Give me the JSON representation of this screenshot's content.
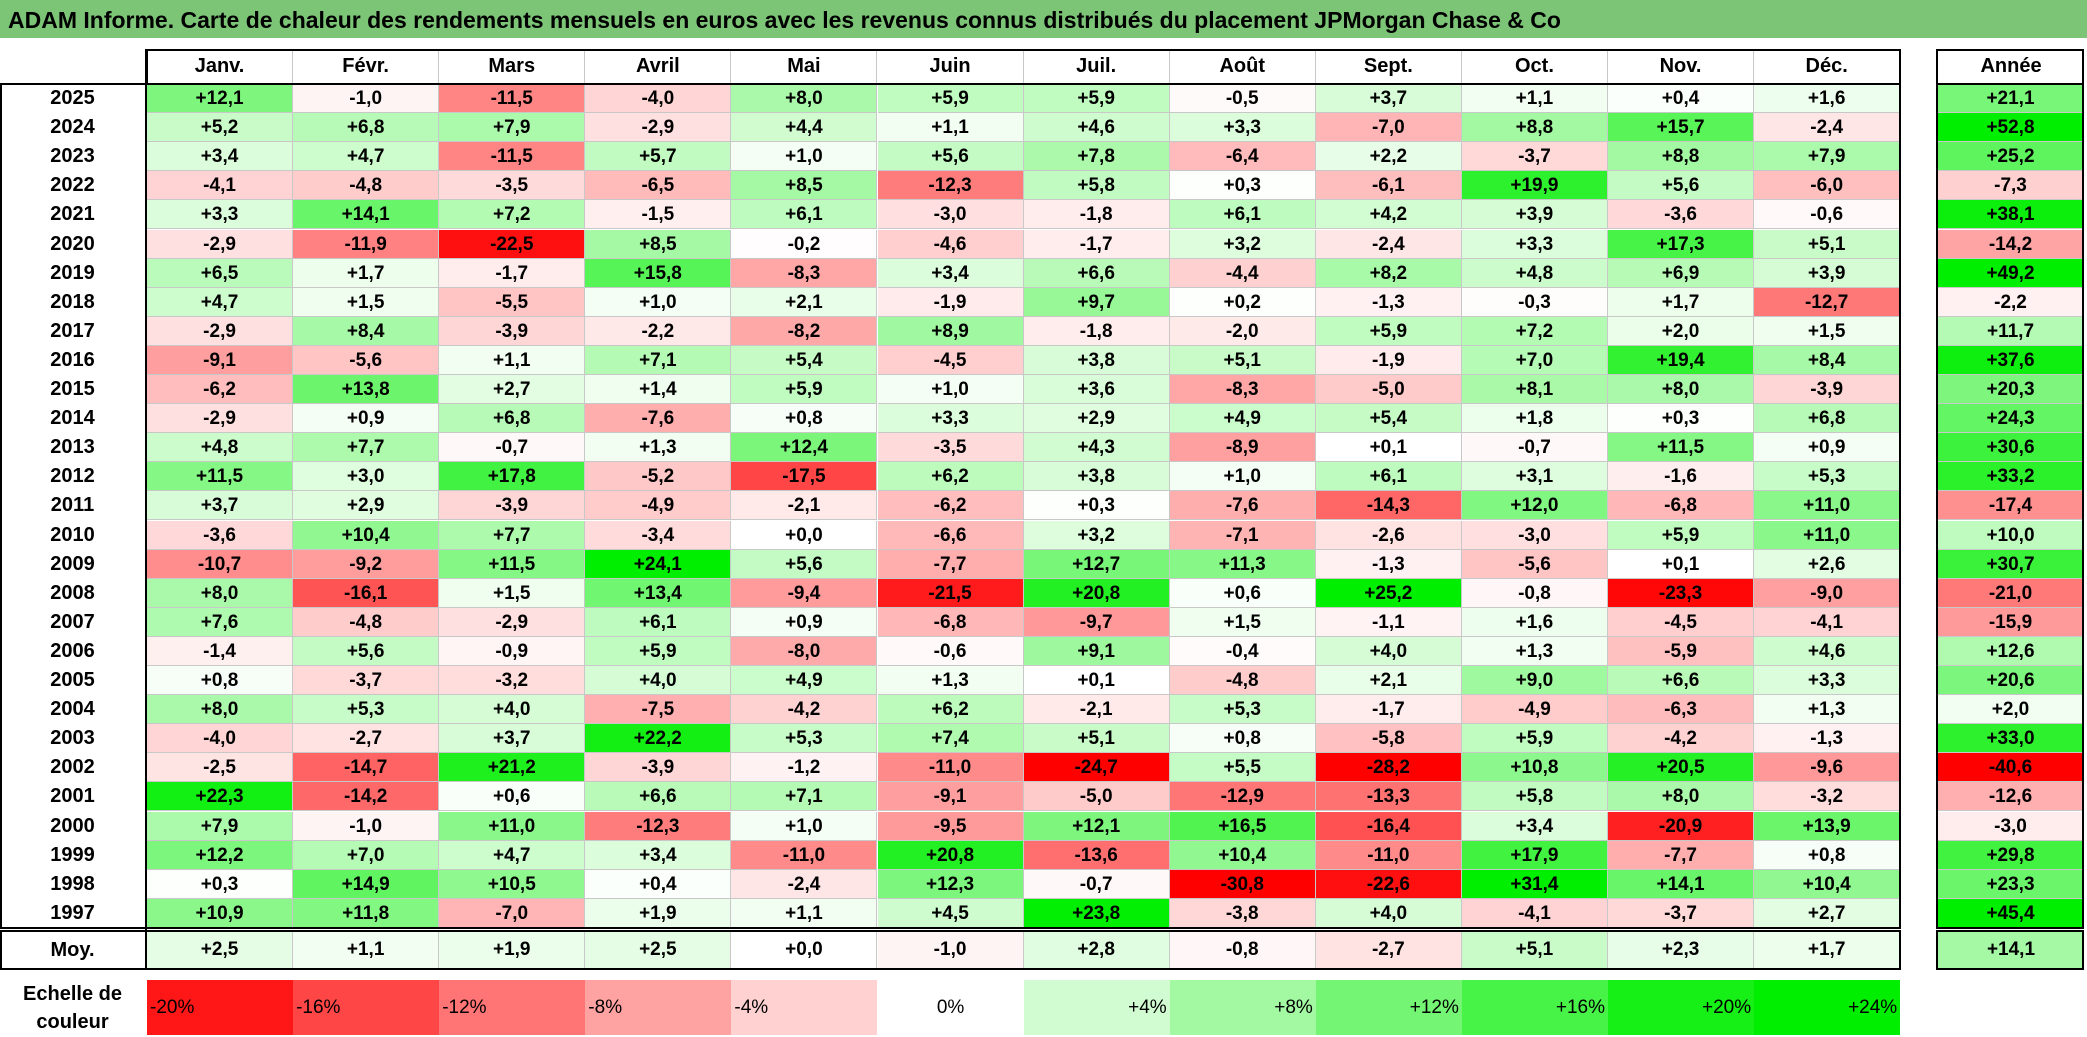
{
  "title": "ADAM Informe. Carte de chaleur des rendements mensuels en euros avec les revenus connus distribués du placement JPMorgan Chase & Co",
  "chart_data": {
    "type": "heatmap",
    "title": "ADAM Informe. Carte de chaleur des rendements mensuels en euros avec les revenus connus distribués du placement JPMorgan Chase & Co",
    "columns": [
      "Janv.",
      "Févr.",
      "Mars",
      "Avril",
      "Mai",
      "Juin",
      "Juil.",
      "Août",
      "Sept.",
      "Oct.",
      "Nov.",
      "Déc."
    ],
    "year_column": "Année",
    "rows": [
      {
        "year": "2025",
        "values": [
          "+12,1",
          "-1,0",
          "-11,5",
          "-4,0",
          "+8,0",
          "+5,9",
          "+5,9",
          "-0,5",
          "+3,7",
          "+1,1",
          "+0,4",
          "+1,6"
        ],
        "annual": "+21,1"
      },
      {
        "year": "2024",
        "values": [
          "+5,2",
          "+6,8",
          "+7,9",
          "-2,9",
          "+4,4",
          "+1,1",
          "+4,6",
          "+3,3",
          "-7,0",
          "+8,8",
          "+15,7",
          "-2,4"
        ],
        "annual": "+52,8"
      },
      {
        "year": "2023",
        "values": [
          "+3,4",
          "+4,7",
          "-11,5",
          "+5,7",
          "+1,0",
          "+5,6",
          "+7,8",
          "-6,4",
          "+2,2",
          "-3,7",
          "+8,8",
          "+7,9"
        ],
        "annual": "+25,2"
      },
      {
        "year": "2022",
        "values": [
          "-4,1",
          "-4,8",
          "-3,5",
          "-6,5",
          "+8,5",
          "-12,3",
          "+5,8",
          "+0,3",
          "-6,1",
          "+19,9",
          "+5,6",
          "-6,0"
        ],
        "annual": "-7,3"
      },
      {
        "year": "2021",
        "values": [
          "+3,3",
          "+14,1",
          "+7,2",
          "-1,5",
          "+6,1",
          "-3,0",
          "-1,8",
          "+6,1",
          "+4,2",
          "+3,9",
          "-3,6",
          "-0,6"
        ],
        "annual": "+38,1"
      },
      {
        "year": "2020",
        "values": [
          "-2,9",
          "-11,9",
          "-22,5",
          "+8,5",
          "-0,2",
          "-4,6",
          "-1,7",
          "+3,2",
          "-2,4",
          "+3,3",
          "+17,3",
          "+5,1"
        ],
        "annual": "-14,2"
      },
      {
        "year": "2019",
        "values": [
          "+6,5",
          "+1,7",
          "-1,7",
          "+15,8",
          "-8,3",
          "+3,4",
          "+6,6",
          "-4,4",
          "+8,2",
          "+4,8",
          "+6,9",
          "+3,9"
        ],
        "annual": "+49,2"
      },
      {
        "year": "2018",
        "values": [
          "+4,7",
          "+1,5",
          "-5,5",
          "+1,0",
          "+2,1",
          "-1,9",
          "+9,7",
          "+0,2",
          "-1,3",
          "-0,3",
          "+1,7",
          "-12,7"
        ],
        "annual": "-2,2"
      },
      {
        "year": "2017",
        "values": [
          "-2,9",
          "+8,4",
          "-3,9",
          "-2,2",
          "-8,2",
          "+8,9",
          "-1,8",
          "-2,0",
          "+5,9",
          "+7,2",
          "+2,0",
          "+1,5"
        ],
        "annual": "+11,7"
      },
      {
        "year": "2016",
        "values": [
          "-9,1",
          "-5,6",
          "+1,1",
          "+7,1",
          "+5,4",
          "-4,5",
          "+3,8",
          "+5,1",
          "-1,9",
          "+7,0",
          "+19,4",
          "+8,4"
        ],
        "annual": "+37,6"
      },
      {
        "year": "2015",
        "values": [
          "-6,2",
          "+13,8",
          "+2,7",
          "+1,4",
          "+5,9",
          "+1,0",
          "+3,6",
          "-8,3",
          "-5,0",
          "+8,1",
          "+8,0",
          "-3,9"
        ],
        "annual": "+20,3"
      },
      {
        "year": "2014",
        "values": [
          "-2,9",
          "+0,9",
          "+6,8",
          "-7,6",
          "+0,8",
          "+3,3",
          "+2,9",
          "+4,9",
          "+5,4",
          "+1,8",
          "+0,3",
          "+6,8"
        ],
        "annual": "+24,3"
      },
      {
        "year": "2013",
        "values": [
          "+4,8",
          "+7,7",
          "-0,7",
          "+1,3",
          "+12,4",
          "-3,5",
          "+4,3",
          "-8,9",
          "+0,1",
          "-0,7",
          "+11,5",
          "+0,9"
        ],
        "annual": "+30,6"
      },
      {
        "year": "2012",
        "values": [
          "+11,5",
          "+3,0",
          "+17,8",
          "-5,2",
          "-17,5",
          "+6,2",
          "+3,8",
          "+1,0",
          "+6,1",
          "+3,1",
          "-1,6",
          "+5,3"
        ],
        "annual": "+33,2"
      },
      {
        "year": "2011",
        "values": [
          "+3,7",
          "+2,9",
          "-3,9",
          "-4,9",
          "-2,1",
          "-6,2",
          "+0,3",
          "-7,6",
          "-14,3",
          "+12,0",
          "-6,8",
          "+11,0"
        ],
        "annual": "-17,4"
      },
      {
        "year": "2010",
        "values": [
          "-3,6",
          "+10,4",
          "+7,7",
          "-3,4",
          "+0,0",
          "-6,6",
          "+3,2",
          "-7,1",
          "-2,6",
          "-3,0",
          "+5,9",
          "+11,0"
        ],
        "annual": "+10,0"
      },
      {
        "year": "2009",
        "values": [
          "-10,7",
          "-9,2",
          "+11,5",
          "+24,1",
          "+5,6",
          "-7,7",
          "+12,7",
          "+11,3",
          "-1,3",
          "-5,6",
          "+0,1",
          "+2,6"
        ],
        "annual": "+30,7"
      },
      {
        "year": "2008",
        "values": [
          "+8,0",
          "-16,1",
          "+1,5",
          "+13,4",
          "-9,4",
          "-21,5",
          "+20,8",
          "+0,6",
          "+25,2",
          "-0,8",
          "-23,3",
          "-9,0"
        ],
        "annual": "-21,0"
      },
      {
        "year": "2007",
        "values": [
          "+7,6",
          "-4,8",
          "-2,9",
          "+6,1",
          "+0,9",
          "-6,8",
          "-9,7",
          "+1,5",
          "-1,1",
          "+1,6",
          "-4,5",
          "-4,1"
        ],
        "annual": "-15,9"
      },
      {
        "year": "2006",
        "values": [
          "-1,4",
          "+5,6",
          "-0,9",
          "+5,9",
          "-8,0",
          "-0,6",
          "+9,1",
          "-0,4",
          "+4,0",
          "+1,3",
          "-5,9",
          "+4,6"
        ],
        "annual": "+12,6"
      },
      {
        "year": "2005",
        "values": [
          "+0,8",
          "-3,7",
          "-3,2",
          "+4,0",
          "+4,9",
          "+1,3",
          "+0,1",
          "-4,8",
          "+2,1",
          "+9,0",
          "+6,6",
          "+3,3"
        ],
        "annual": "+20,6"
      },
      {
        "year": "2004",
        "values": [
          "+8,0",
          "+5,3",
          "+4,0",
          "-7,5",
          "-4,2",
          "+6,2",
          "-2,1",
          "+5,3",
          "-1,7",
          "-4,9",
          "-6,3",
          "+1,3"
        ],
        "annual": "+2,0"
      },
      {
        "year": "2003",
        "values": [
          "-4,0",
          "-2,7",
          "+3,7",
          "+22,2",
          "+5,3",
          "+7,4",
          "+5,1",
          "+0,8",
          "-5,8",
          "+5,9",
          "-4,2",
          "-1,3"
        ],
        "annual": "+33,0"
      },
      {
        "year": "2002",
        "values": [
          "-2,5",
          "-14,7",
          "+21,2",
          "-3,9",
          "-1,2",
          "-11,0",
          "-24,7",
          "+5,5",
          "-28,2",
          "+10,8",
          "+20,5",
          "-9,6"
        ],
        "annual": "-40,6"
      },
      {
        "year": "2001",
        "values": [
          "+22,3",
          "-14,2",
          "+0,6",
          "+6,6",
          "+7,1",
          "-9,1",
          "-5,0",
          "-12,9",
          "-13,3",
          "+5,8",
          "+8,0",
          "-3,2"
        ],
        "annual": "-12,6"
      },
      {
        "year": "2000",
        "values": [
          "+7,9",
          "-1,0",
          "+11,0",
          "-12,3",
          "+1,0",
          "-9,5",
          "+12,1",
          "+16,5",
          "-16,4",
          "+3,4",
          "-20,9",
          "+13,9"
        ],
        "annual": "-3,0"
      },
      {
        "year": "1999",
        "values": [
          "+12,2",
          "+7,0",
          "+4,7",
          "+3,4",
          "-11,0",
          "+20,8",
          "-13,6",
          "+10,4",
          "-11,0",
          "+17,9",
          "-7,7",
          "+0,8"
        ],
        "annual": "+29,8"
      },
      {
        "year": "1998",
        "values": [
          "+0,3",
          "+14,9",
          "+10,5",
          "+0,4",
          "-2,4",
          "+12,3",
          "-0,7",
          "-30,8",
          "-22,6",
          "+31,4",
          "+14,1",
          "+10,4"
        ],
        "annual": "+23,3"
      },
      {
        "year": "1997",
        "values": [
          "+10,9",
          "+11,8",
          "-7,0",
          "+1,9",
          "+1,1",
          "+4,5",
          "+23,8",
          "-3,8",
          "+4,0",
          "-4,1",
          "-3,7",
          "+2,7"
        ],
        "annual": "+45,4"
      }
    ],
    "average": {
      "label": "Moy.",
      "values": [
        "+2,5",
        "+1,1",
        "+1,9",
        "+2,5",
        "+0,0",
        "-1,0",
        "+2,8",
        "-0,8",
        "-2,7",
        "+5,1",
        "+2,3",
        "+1,7"
      ],
      "annual": "+14,1"
    },
    "scale": {
      "label": "Echelle de couleur",
      "entries": [
        "-20%",
        "-16%",
        "-12%",
        "-8%",
        "-4%",
        "0%",
        "+4%",
        "+8%",
        "+12%",
        "+16%",
        "+20%",
        "+24%"
      ]
    },
    "colors": {
      "negative_max": "#ff0000",
      "neutral": "#ffffff",
      "positive_max": "#00ee00",
      "title_bar": "#7cc576"
    }
  }
}
